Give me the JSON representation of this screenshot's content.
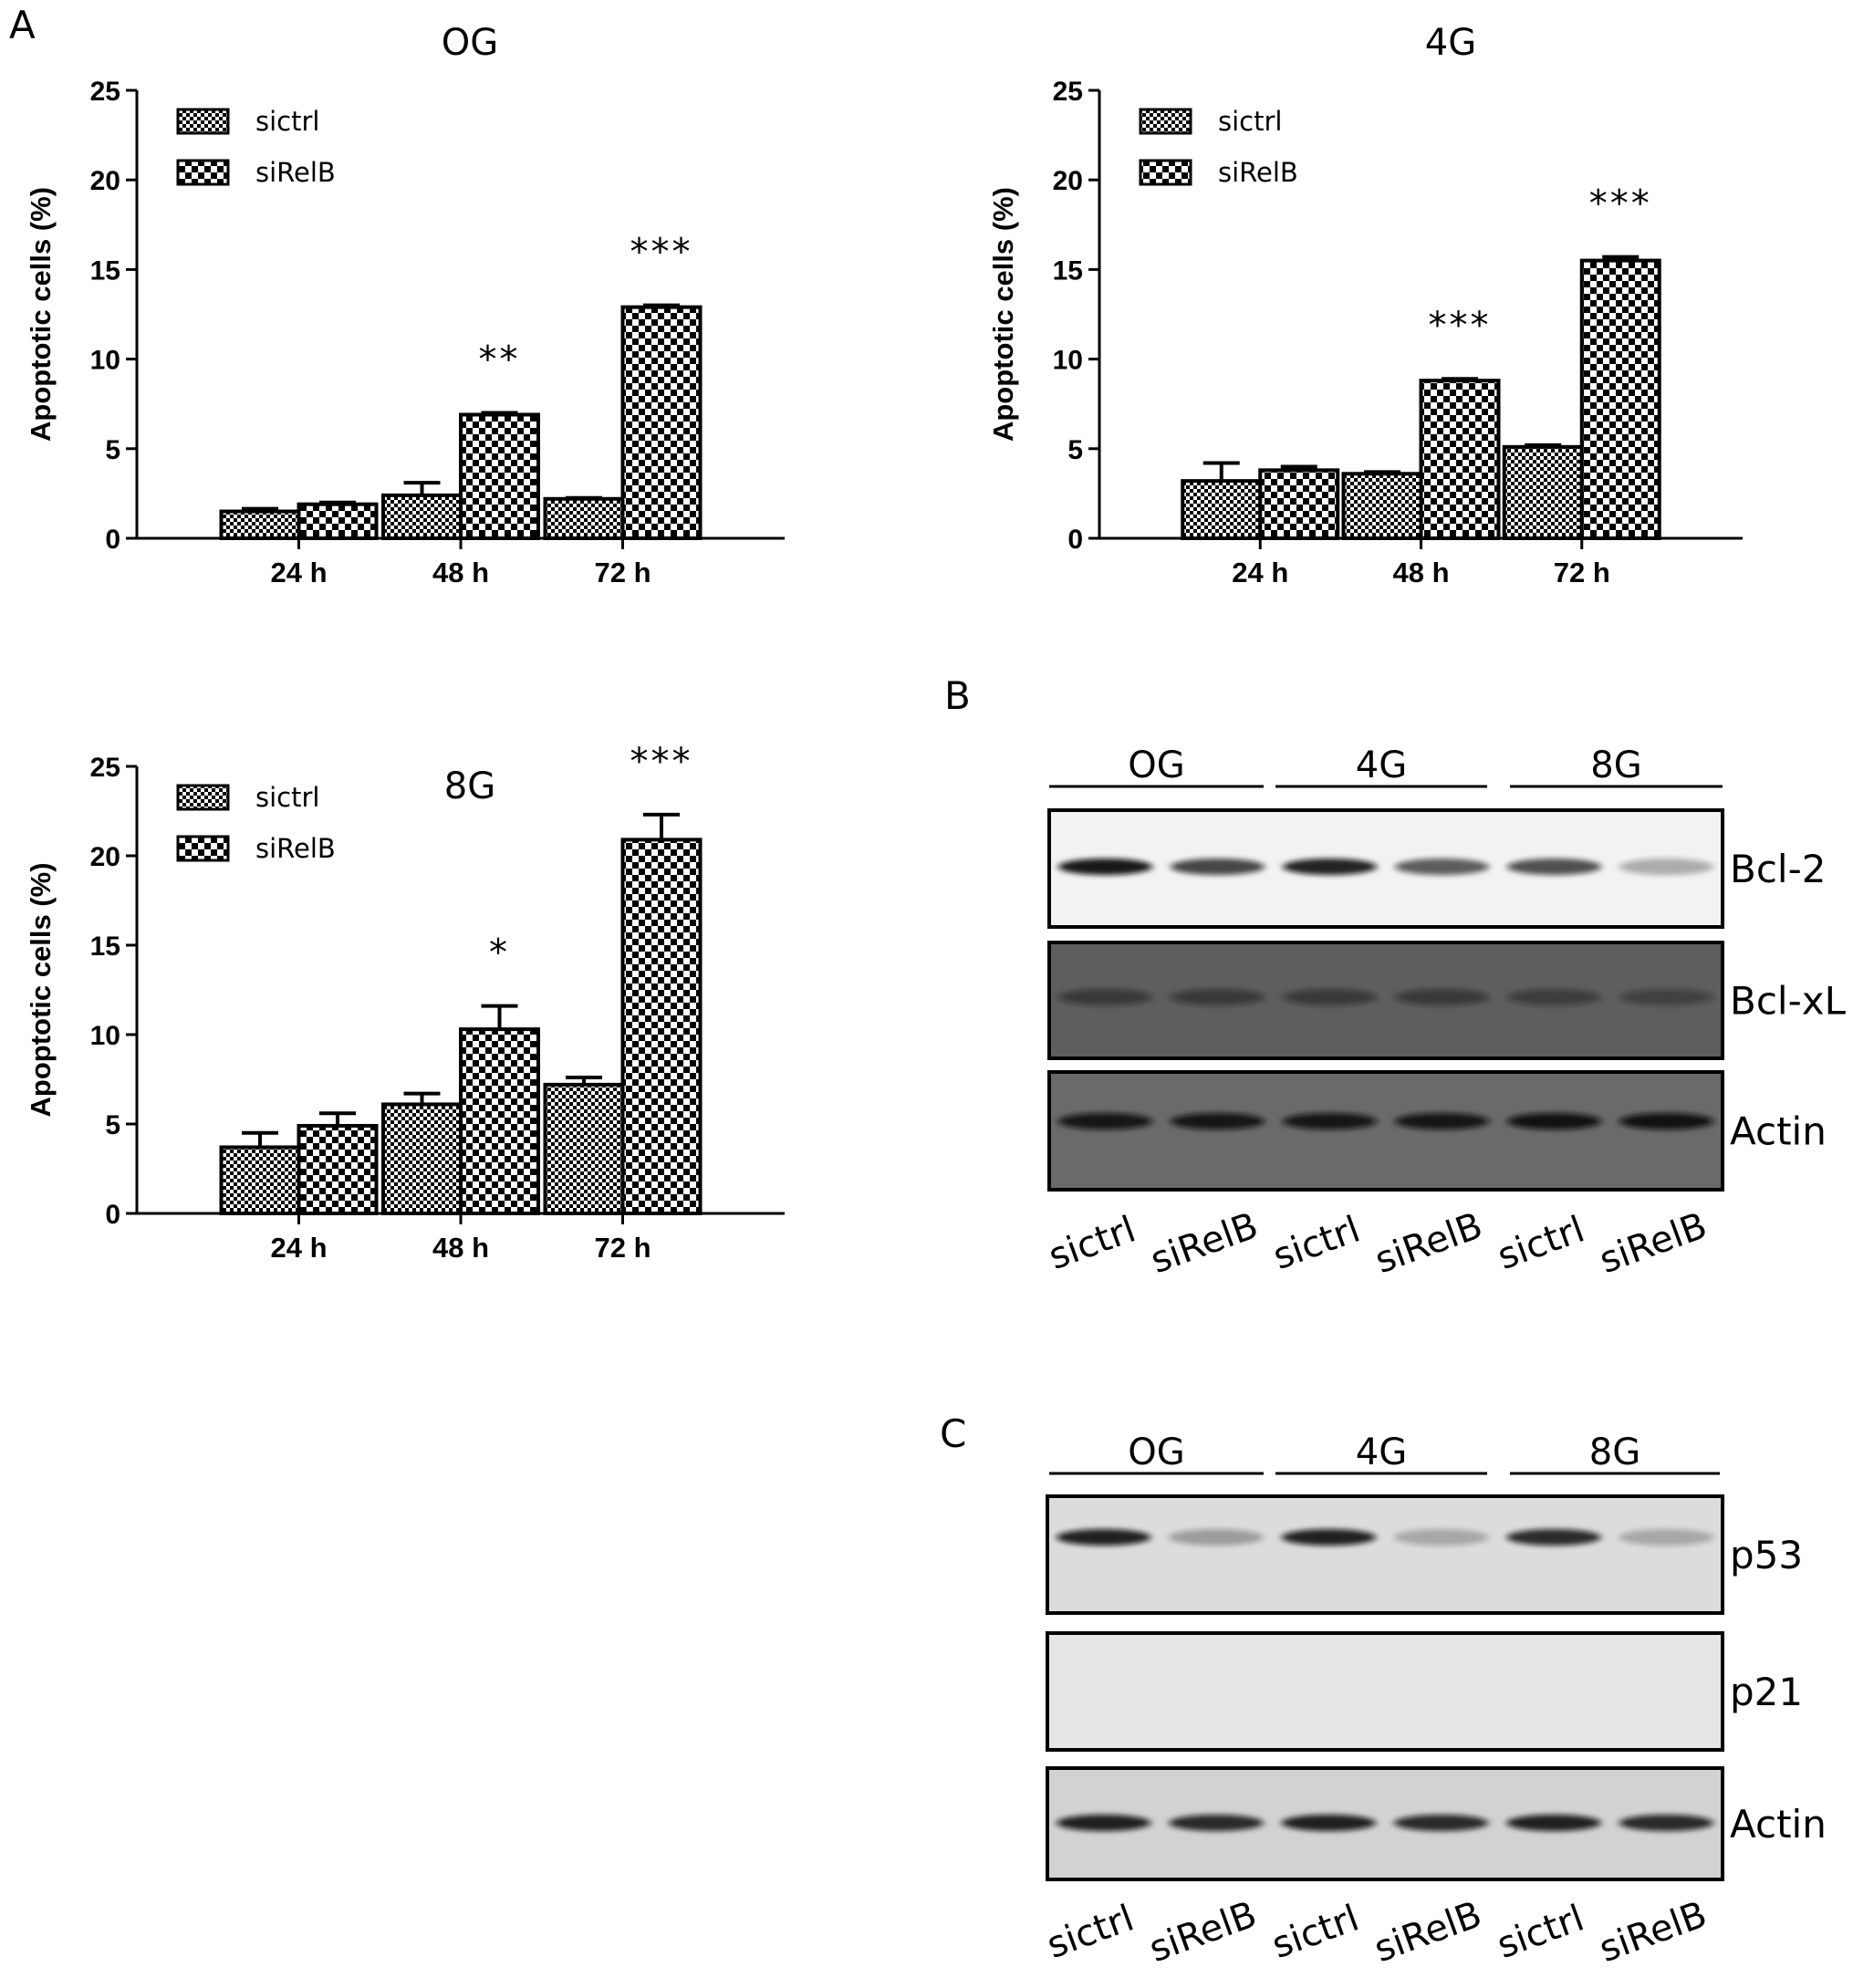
{
  "panels": {
    "A": "A",
    "B": "B",
    "C": "C"
  },
  "legend": {
    "sictrl": "sictrl",
    "sirelb": "siRelB"
  },
  "axis": {
    "ylabel": "Apoptotic cells (%)",
    "yticks": [
      "0",
      "5",
      "10",
      "15",
      "20",
      "25"
    ],
    "categories": [
      "24 h",
      "48 h",
      "72 h"
    ]
  },
  "colors": {
    "ink": "#000000",
    "sictrl_pattern": "fine-checker",
    "sirelb_pattern": "coarse-checker"
  },
  "chart_data": [
    {
      "type": "bar",
      "title": "OG",
      "categories": [
        "24 h",
        "48 h",
        "72 h"
      ],
      "series": [
        {
          "name": "sictrl",
          "values": [
            1.5,
            2.4,
            2.2
          ],
          "errors": [
            0.15,
            0.7,
            0.05
          ]
        },
        {
          "name": "siRelB",
          "values": [
            1.9,
            6.9,
            12.9
          ],
          "errors": [
            0.1,
            0.1,
            0.1
          ]
        }
      ],
      "significance": [
        "",
        "**",
        "***"
      ],
      "ylabel": "Apoptotic cells (%)",
      "ylim": [
        0,
        25
      ],
      "legend_position": "top-left"
    },
    {
      "type": "bar",
      "title": "4G",
      "categories": [
        "24 h",
        "48 h",
        "72 h"
      ],
      "series": [
        {
          "name": "sictrl",
          "values": [
            3.2,
            3.6,
            5.1
          ],
          "errors": [
            1.0,
            0.1,
            0.1
          ]
        },
        {
          "name": "siRelB",
          "values": [
            3.8,
            8.8,
            15.5
          ],
          "errors": [
            0.2,
            0.1,
            0.2
          ]
        }
      ],
      "significance": [
        "",
        "***",
        "***"
      ],
      "ylabel": "Apoptotic cells (%)",
      "ylim": [
        0,
        25
      ],
      "legend_position": "top-left"
    },
    {
      "type": "bar",
      "title": "8G",
      "categories": [
        "24 h",
        "48 h",
        "72 h"
      ],
      "series": [
        {
          "name": "sictrl",
          "values": [
            3.7,
            6.1,
            7.2
          ],
          "errors": [
            0.8,
            0.6,
            0.4
          ]
        },
        {
          "name": "siRelB",
          "values": [
            4.9,
            10.3,
            20.9
          ],
          "errors": [
            0.7,
            1.3,
            1.4
          ]
        }
      ],
      "significance": [
        "",
        "*",
        "***"
      ],
      "ylabel": "Apoptotic cells (%)",
      "ylim": [
        0,
        25
      ],
      "legend_position": "top-left"
    }
  ],
  "blot_b": {
    "groups": [
      "OG",
      "4G",
      "8G"
    ],
    "bands": [
      "Bcl-2",
      "Bcl-xL",
      "Actin"
    ],
    "lanes": [
      "sictrl",
      "siRelB",
      "sictrl",
      "siRelB",
      "sictrl",
      "siRelB"
    ],
    "band_intensity": {
      "Bcl-2": [
        0.95,
        0.75,
        0.9,
        0.65,
        0.7,
        0.3
      ],
      "Bcl-xL": [
        0.45,
        0.45,
        0.45,
        0.45,
        0.4,
        0.35
      ],
      "Actin": [
        0.9,
        0.9,
        0.9,
        0.9,
        0.95,
        0.95
      ]
    }
  },
  "blot_c": {
    "groups": [
      "OG",
      "4G",
      "8G"
    ],
    "bands": [
      "p53",
      "p21",
      "Actin"
    ],
    "lanes": [
      "sictrl",
      "siRelB",
      "sictrl",
      "siRelB",
      "sictrl",
      "siRelB"
    ],
    "band_intensity": {
      "p53": [
        0.9,
        0.3,
        0.9,
        0.25,
        0.85,
        0.25
      ],
      "p21": [
        0,
        0,
        0,
        0,
        0,
        0
      ],
      "Actin": [
        0.9,
        0.85,
        0.9,
        0.85,
        0.9,
        0.85
      ]
    }
  }
}
